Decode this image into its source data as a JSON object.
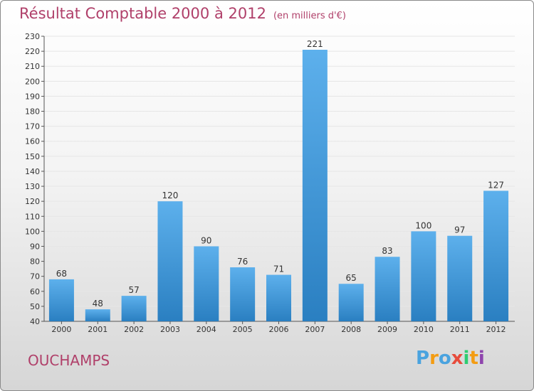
{
  "header": {
    "title": "Résultat Comptable 2000 à 2012",
    "subtitle": "(en milliers d'€)"
  },
  "footer": {
    "commune": "OUCHAMPS",
    "logo_letters": [
      "P",
      "r",
      "o",
      "x",
      "i",
      "t",
      "i"
    ],
    "logo_colors": [
      "#4aa3df",
      "#f39c12",
      "#4aa3df",
      "#e74c3c",
      "#2ecc71",
      "#f39c12",
      "#8e44ad"
    ]
  },
  "colors": {
    "title": "#b0406a",
    "bar_top": "#5db0ec",
    "bar_bottom": "#2a7fc1",
    "grid": "#e6e6e6"
  },
  "chart_data": {
    "type": "bar",
    "title": "Résultat Comptable 2000 à 2012",
    "xlabel": "",
    "ylabel": "",
    "categories": [
      "2000",
      "2001",
      "2002",
      "2003",
      "2004",
      "2005",
      "2006",
      "2007",
      "2008",
      "2009",
      "2010",
      "2011",
      "2012"
    ],
    "values": [
      68,
      48,
      57,
      120,
      90,
      76,
      71,
      221,
      65,
      83,
      100,
      97,
      127
    ],
    "ylim": [
      40,
      230
    ],
    "ytick_step": 10,
    "grid": true
  }
}
